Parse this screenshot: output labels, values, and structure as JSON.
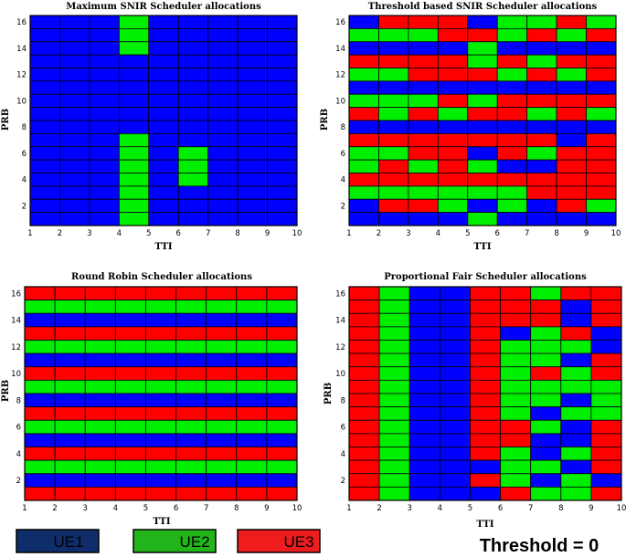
{
  "colors": {
    "UE1": "#0000ff",
    "UE2": "#00ee00",
    "UE3": "#ff0000",
    "grid": "#000000"
  },
  "legend": {
    "items": [
      {
        "label": "UE1",
        "color": "#102d6b"
      },
      {
        "label": "UE2",
        "color": "#22b41a"
      },
      {
        "label": "UE3",
        "color": "#ee1c1c"
      }
    ],
    "threshold_text": "Threshold = 0"
  },
  "chart_data": [
    {
      "type": "heatmap",
      "title": "Maximum SNIR Scheduler allocations",
      "xlabel": "TTI",
      "ylabel": "PRB",
      "xlim": [
        1,
        10
      ],
      "ylim": [
        1,
        16
      ],
      "xticks": [
        "1",
        "2",
        "3",
        "4",
        "5",
        "6",
        "7",
        "8",
        "9",
        "10"
      ],
      "yticks": [
        "2",
        "4",
        "6",
        "8",
        "10",
        "12",
        "14",
        "16"
      ],
      "rows_top_to_bottom": [
        "111211111",
        "111211111",
        "111211111",
        "111111111",
        "111111111",
        "111111111",
        "111111111",
        "111111111",
        "111111111",
        "111211111",
        "111212111",
        "111212111",
        "111212111",
        "111211111",
        "111211111",
        "111211111"
      ]
    },
    {
      "type": "heatmap",
      "title": "Threshold based SNIR Scheduler allocations",
      "xlabel": "TTI",
      "ylabel": "PRB",
      "xlim": [
        1,
        10
      ],
      "ylim": [
        1,
        16
      ],
      "xticks": [
        "1",
        "2",
        "3",
        "4",
        "5",
        "6",
        "7",
        "8",
        "9",
        "10"
      ],
      "yticks": [
        "2",
        "4",
        "6",
        "8",
        "10",
        "12",
        "14",
        "16"
      ],
      "rows_top_to_bottom": [
        "133312232",
        "222332323",
        "111121111",
        "333323233",
        "223332323",
        "111111111",
        "222323333",
        "323233232",
        "111111111",
        "333333313",
        "223313233",
        "232321133",
        "333333333",
        "222222333",
        "133212132",
        "111121111"
      ]
    },
    {
      "type": "heatmap",
      "title": "Round Robin Scheduler allocations",
      "xlabel": "TTI",
      "ylabel": "PRB",
      "xlim": [
        1,
        10
      ],
      "ylim": [
        1,
        16
      ],
      "xticks": [
        "1",
        "2",
        "3",
        "4",
        "5",
        "6",
        "7",
        "8",
        "9",
        "10"
      ],
      "yticks": [
        "2",
        "4",
        "6",
        "8",
        "10",
        "12",
        "14",
        "16"
      ],
      "rows_top_to_bottom": [
        "333333333",
        "222222222",
        "111111111",
        "333333333",
        "222222222",
        "111111111",
        "333333333",
        "222222222",
        "111111111",
        "333333333",
        "222222222",
        "111111111",
        "333333333",
        "222222222",
        "111111111",
        "333333333"
      ]
    },
    {
      "type": "heatmap",
      "title": "Proportional Fair Scheduler allocations",
      "xlabel": "TTI",
      "ylabel": "PRB",
      "xlim": [
        1,
        10
      ],
      "ylim": [
        1,
        16
      ],
      "xticks": [
        "1",
        "2",
        "3",
        "4",
        "5",
        "6",
        "7",
        "8",
        "9",
        "10"
      ],
      "yticks": [
        "2",
        "4",
        "6",
        "8",
        "10",
        "12",
        "14",
        "16"
      ],
      "rows_top_to_bottom": [
        "321133233",
        "321133313",
        "321133313",
        "321131231",
        "321132221",
        "321132213",
        "321132323",
        "321132222",
        "321132212",
        "321132122",
        "321133213",
        "321133113",
        "321132123",
        "321112213",
        "321132121",
        "321113223"
      ]
    }
  ]
}
